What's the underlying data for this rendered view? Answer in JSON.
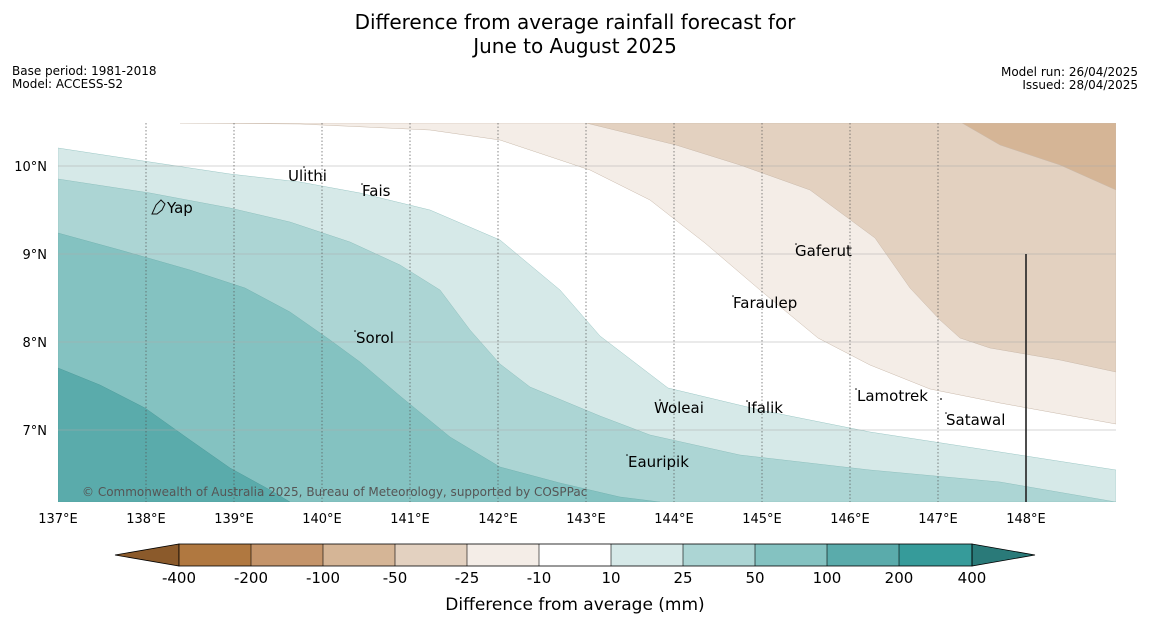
{
  "title_line1": "Difference from average rainfall forecast for",
  "title_line2": "June to August 2025",
  "base_period": "Base period: 1981-2018",
  "model": "Model: ACCESS-S2",
  "model_run": "Model run: 26/04/2025",
  "issued": "Issued: 28/04/2025",
  "copyright": "© Commonwealth of Australia 2025, Bureau of Meteorology, supported by COSPPac",
  "axes": {
    "lon_ticks": [
      "137°E",
      "138°E",
      "139°E",
      "140°E",
      "141°E",
      "142°E",
      "143°E",
      "144°E",
      "145°E",
      "146°E",
      "147°E",
      "148°E"
    ],
    "lat_ticks": [
      "10°N",
      "9°N",
      "8°N",
      "7°N"
    ]
  },
  "places": [
    {
      "name": "Ulithi"
    },
    {
      "name": "Fais"
    },
    {
      "name": "Yap"
    },
    {
      "name": "Gaferut"
    },
    {
      "name": "Faraulep"
    },
    {
      "name": "Sorol"
    },
    {
      "name": "Lamotrek"
    },
    {
      "name": "Woleai"
    },
    {
      "name": "Ifalik"
    },
    {
      "name": "Satawal"
    },
    {
      "name": "Eauripik"
    }
  ],
  "legend": {
    "title": "Difference from average (mm)",
    "labels": [
      "-400",
      "-200",
      "-100",
      "-50",
      "-25",
      "-10",
      "10",
      "25",
      "50",
      "100",
      "200",
      "400"
    ],
    "colors": [
      "#8b5a2b",
      "#b07840",
      "#c4946a",
      "#d5b596",
      "#e3d1c0",
      "#f4ede7",
      "#ffffff",
      "#d6e9e8",
      "#acd5d4",
      "#84c2c1",
      "#5aabab",
      "#369b9a",
      "#2a7a79"
    ]
  }
}
